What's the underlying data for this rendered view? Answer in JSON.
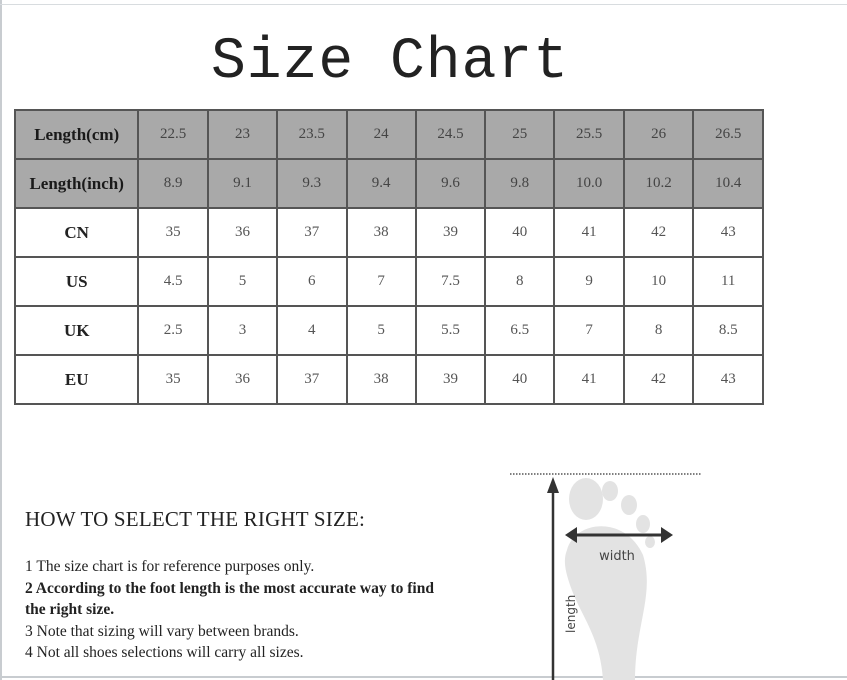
{
  "title": "Size Chart",
  "table": {
    "rows": [
      {
        "label": "Length(cm)",
        "shaded": true,
        "values": [
          "22.5",
          "23",
          "23.5",
          "24",
          "24.5",
          "25",
          "25.5",
          "26",
          "26.5"
        ]
      },
      {
        "label": "Length(inch)",
        "shaded": true,
        "values": [
          "8.9",
          "9.1",
          "9.3",
          "9.4",
          "9.6",
          "9.8",
          "10.0",
          "10.2",
          "10.4"
        ]
      },
      {
        "label": "CN",
        "shaded": false,
        "values": [
          "35",
          "36",
          "37",
          "38",
          "39",
          "40",
          "41",
          "42",
          "43"
        ]
      },
      {
        "label": "US",
        "shaded": false,
        "values": [
          "4.5",
          "5",
          "6",
          "7",
          "7.5",
          "8",
          "9",
          "10",
          "11"
        ]
      },
      {
        "label": "UK",
        "shaded": false,
        "values": [
          "2.5",
          "3",
          "4",
          "5",
          "5.5",
          "6.5",
          "7",
          "8",
          "8.5"
        ]
      },
      {
        "label": "EU",
        "shaded": false,
        "values": [
          "35",
          "36",
          "37",
          "38",
          "39",
          "40",
          "41",
          "42",
          "43"
        ]
      }
    ]
  },
  "howto": {
    "heading": "HOW TO SELECT THE RIGHT SIZE:",
    "notes": [
      "1 The size chart is for reference purposes only.",
      "2 According to the foot length is the most accurate way to find the right size.",
      "3 Note that sizing will vary between brands.",
      "4 Not all shoes selections will carry all sizes."
    ]
  },
  "diagram": {
    "width_label": "width",
    "length_label": "length"
  },
  "colors": {
    "header_fill": "#a9a9a9",
    "border": "#555555",
    "foot": "#e3e3e3"
  }
}
